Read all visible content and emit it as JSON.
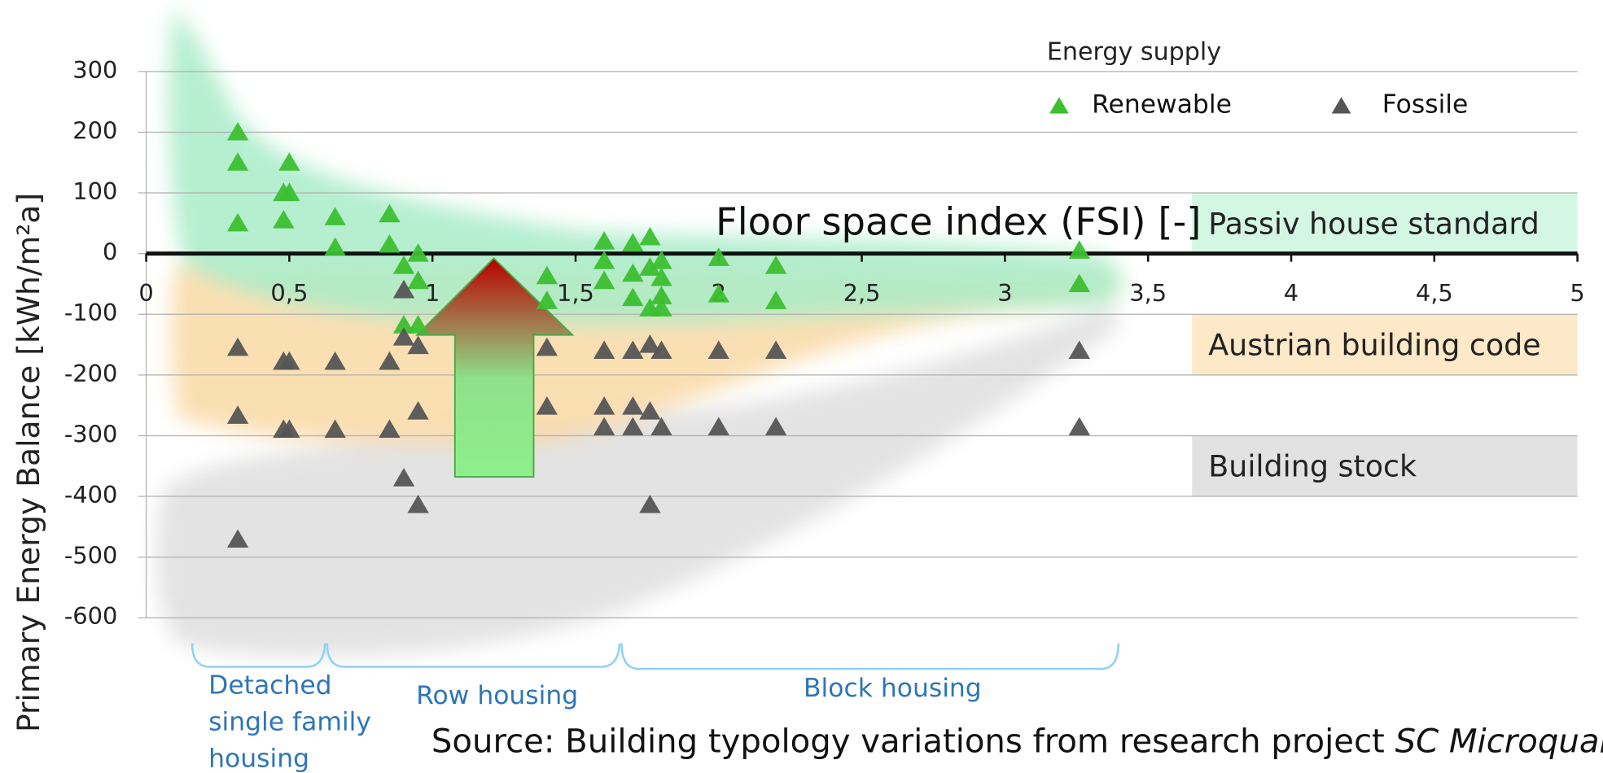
{
  "chart_data": {
    "type": "scatter",
    "x_label": "Floor space index (FSI) [-]",
    "y_label": "Primary Energy Balance [kWh/m²a]",
    "legend_title": "Energy supply",
    "xlim": [
      0,
      5
    ],
    "ylim": [
      -600,
      300
    ],
    "xticks": [
      0,
      {
        "value": 0.5,
        "label": "0,5"
      },
      1,
      {
        "value": 1.5,
        "label": "1,5"
      },
      2,
      {
        "value": 2.5,
        "label": "2,5"
      },
      3,
      {
        "value": 3.5,
        "label": "3,5"
      },
      4,
      {
        "value": 4.5,
        "label": "4,5"
      },
      5
    ],
    "yticks": [
      300,
      200,
      100,
      0,
      -100,
      -200,
      -300,
      -400,
      -500,
      -600
    ],
    "grid": true,
    "series": [
      {
        "name": "Renewable",
        "color": "#3cbf30",
        "x": [
          0.32,
          0.32,
          0.32,
          0.5,
          0.48,
          0.5,
          0.48,
          0.66,
          0.66,
          0.85,
          0.85,
          0.9,
          0.95,
          0.95,
          0.9,
          0.95,
          1.4,
          1.4,
          1.6,
          1.6,
          1.6,
          1.7,
          1.7,
          1.7,
          1.76,
          1.76,
          1.8,
          1.8,
          1.8,
          1.76,
          1.8,
          2.0,
          2.0,
          2.2,
          2.2,
          3.26,
          3.26
        ],
        "values": [
          200,
          150,
          50,
          150,
          100,
          100,
          55,
          60,
          10,
          65,
          15,
          -20,
          0,
          -45,
          -118,
          -118,
          -37,
          -78,
          20,
          -12,
          -45,
          17,
          -33,
          -73,
          27,
          -23,
          -12,
          -40,
          -70,
          -90,
          -90,
          -7,
          -67,
          -20,
          -78,
          5,
          -50
        ]
      },
      {
        "name": "Fossile",
        "color": "#555555",
        "x": [
          0.32,
          0.32,
          0.32,
          0.48,
          0.5,
          0.48,
          0.5,
          0.66,
          0.66,
          0.85,
          0.85,
          0.9,
          0.9,
          0.9,
          0.95,
          0.95,
          0.95,
          1.4,
          1.4,
          1.6,
          1.6,
          1.6,
          1.7,
          1.7,
          1.7,
          1.76,
          1.76,
          1.76,
          1.8,
          1.8,
          2.0,
          2.0,
          2.2,
          2.2,
          3.26,
          3.26
        ],
        "values": [
          -155,
          -267,
          -471,
          -178,
          -178,
          -290,
          -290,
          -178,
          -290,
          -178,
          -290,
          -60,
          -138,
          -370,
          -152,
          -260,
          -414,
          -155,
          -252,
          -160,
          -252,
          -286,
          -160,
          -252,
          -286,
          -150,
          -260,
          -414,
          -160,
          -286,
          -160,
          -286,
          -160,
          -286,
          -160,
          -286
        ]
      }
    ],
    "bands": [
      {
        "label": "Passiv house standard",
        "y_range": [
          0,
          100
        ],
        "color": "#d4f7e4"
      },
      {
        "label": "Austrian building code",
        "y_range": [
          -200,
          -100
        ],
        "color": "#fde8c8"
      },
      {
        "label": "Building stock",
        "y_range": [
          -400,
          -300
        ],
        "color": "#e2e2e2"
      }
    ],
    "groups": [
      {
        "label": [
          "Detached",
          "single family",
          "housing"
        ]
      },
      {
        "label": [
          "Row housing"
        ]
      },
      {
        "label": [
          "Block housing"
        ]
      }
    ],
    "source": [
      "Source: Building typology variations from research project ",
      "SC Microquartiere"
    ]
  }
}
